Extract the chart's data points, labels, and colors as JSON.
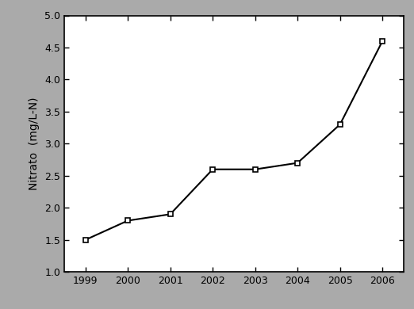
{
  "years": [
    1999,
    2000,
    2001,
    2002,
    2003,
    2004,
    2005,
    2006
  ],
  "nitrato": [
    1.5,
    1.8,
    1.9,
    2.6,
    2.6,
    2.7,
    3.3,
    4.6
  ],
  "xlabel": "",
  "ylabel": "Nitrato  (mg/L-N)",
  "ylim": [
    1.0,
    5.0
  ],
  "yticks": [
    1.0,
    1.5,
    2.0,
    2.5,
    3.0,
    3.5,
    4.0,
    4.5,
    5.0
  ],
  "xticks": [
    1999,
    2000,
    2001,
    2002,
    2003,
    2004,
    2005,
    2006
  ],
  "xlim": [
    1998.5,
    2006.5
  ],
  "line_color": "#000000",
  "marker": "s",
  "marker_facecolor": "#ffffff",
  "marker_edgecolor": "#000000",
  "marker_size": 5,
  "line_width": 1.5,
  "background_color": "#ffffff",
  "spine_color": "#000000",
  "outer_border_color": "#aaaaaa",
  "tick_fontsize": 9,
  "ylabel_fontsize": 10
}
